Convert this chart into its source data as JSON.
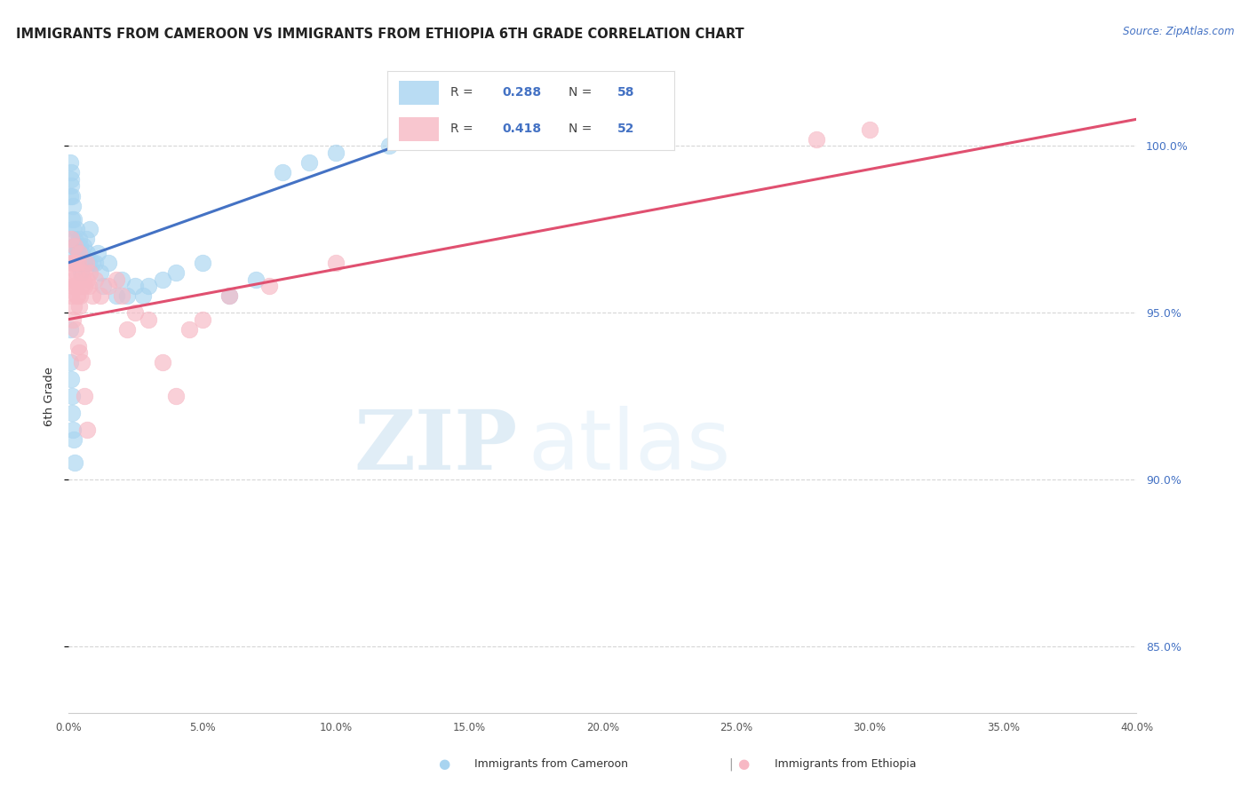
{
  "title": "IMMIGRANTS FROM CAMEROON VS IMMIGRANTS FROM ETHIOPIA 6TH GRADE CORRELATION CHART",
  "source": "Source: ZipAtlas.com",
  "ylabel": "6th Grade",
  "y_ticks": [
    85.0,
    90.0,
    95.0,
    100.0
  ],
  "y_tick_labels": [
    "85.0%",
    "90.0%",
    "95.0%",
    "100.0%"
  ],
  "x_min": 0.0,
  "x_max": 40.0,
  "y_min": 83.0,
  "y_max": 102.0,
  "cameroon_R": 0.288,
  "cameroon_N": 58,
  "ethiopia_R": 0.418,
  "ethiopia_N": 52,
  "cameroon_color": "#a8d4f0",
  "ethiopia_color": "#f7b8c4",
  "cameroon_line_color": "#4472c4",
  "ethiopia_line_color": "#e05070",
  "legend_label_1": "Immigrants from Cameroon",
  "legend_label_2": "Immigrants from Ethiopia",
  "watermark_zip": "ZIP",
  "watermark_atlas": "atlas",
  "background_color": "#ffffff",
  "grid_color": "#cccccc",
  "cameroon_x": [
    0.05,
    0.05,
    0.08,
    0.1,
    0.1,
    0.12,
    0.12,
    0.15,
    0.15,
    0.18,
    0.2,
    0.22,
    0.25,
    0.28,
    0.3,
    0.32,
    0.35,
    0.38,
    0.4,
    0.42,
    0.45,
    0.48,
    0.5,
    0.55,
    0.6,
    0.65,
    0.7,
    0.75,
    0.8,
    0.9,
    1.0,
    1.1,
    1.2,
    1.3,
    1.5,
    1.8,
    2.0,
    2.2,
    2.5,
    2.8,
    3.0,
    3.5,
    4.0,
    5.0,
    6.0,
    7.0,
    8.0,
    9.0,
    10.0,
    12.0,
    0.05,
    0.07,
    0.09,
    0.11,
    0.13,
    0.16,
    0.19,
    0.22
  ],
  "cameroon_y": [
    99.5,
    98.5,
    99.0,
    98.8,
    99.2,
    97.8,
    98.5,
    97.5,
    98.2,
    97.0,
    97.8,
    97.2,
    96.8,
    97.5,
    96.5,
    97.0,
    96.8,
    97.2,
    96.5,
    97.0,
    96.2,
    96.8,
    96.5,
    97.0,
    96.5,
    97.2,
    96.8,
    96.5,
    97.5,
    96.5,
    96.5,
    96.8,
    96.2,
    95.8,
    96.5,
    95.5,
    96.0,
    95.5,
    95.8,
    95.5,
    95.8,
    96.0,
    96.2,
    96.5,
    95.5,
    96.0,
    99.2,
    99.5,
    99.8,
    100.0,
    94.5,
    93.5,
    93.0,
    92.5,
    92.0,
    91.5,
    91.2,
    90.5
  ],
  "ethiopia_x": [
    0.05,
    0.08,
    0.1,
    0.12,
    0.15,
    0.18,
    0.2,
    0.22,
    0.25,
    0.28,
    0.3,
    0.32,
    0.35,
    0.38,
    0.4,
    0.42,
    0.45,
    0.5,
    0.55,
    0.6,
    0.65,
    0.7,
    0.75,
    0.8,
    0.9,
    1.0,
    1.2,
    1.5,
    1.8,
    2.0,
    2.2,
    2.5,
    3.0,
    3.5,
    4.0,
    4.5,
    5.0,
    6.0,
    7.5,
    10.0,
    28.0,
    30.0,
    0.1,
    0.15,
    0.2,
    0.25,
    0.3,
    0.35,
    0.4,
    0.5,
    0.6,
    0.7
  ],
  "ethiopia_y": [
    96.5,
    96.0,
    97.2,
    96.5,
    95.8,
    96.5,
    96.0,
    97.0,
    95.8,
    96.2,
    96.5,
    95.5,
    96.5,
    95.2,
    96.8,
    95.5,
    96.0,
    95.8,
    96.2,
    95.8,
    96.5,
    96.0,
    95.8,
    96.2,
    95.5,
    96.0,
    95.5,
    95.8,
    96.0,
    95.5,
    94.5,
    95.0,
    94.8,
    93.5,
    92.5,
    94.5,
    94.8,
    95.5,
    95.8,
    96.5,
    100.2,
    100.5,
    95.5,
    94.8,
    95.2,
    94.5,
    95.5,
    94.0,
    93.8,
    93.5,
    92.5,
    91.5
  ],
  "cam_trend_x0": 0.0,
  "cam_trend_y0": 96.5,
  "cam_trend_x1": 13.0,
  "cam_trend_y1": 100.2,
  "eth_trend_x0": 0.0,
  "eth_trend_y0": 94.8,
  "eth_trend_x1": 40.0,
  "eth_trend_y1": 100.8
}
